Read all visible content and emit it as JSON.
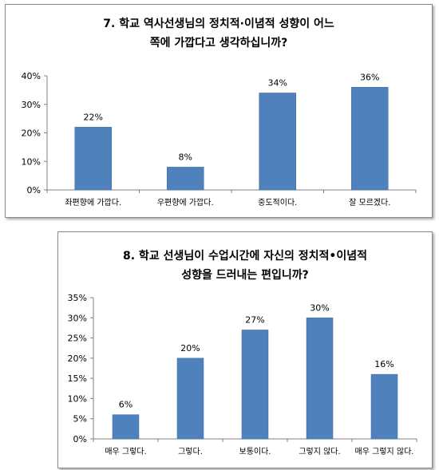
{
  "colors": {
    "bar": "#4f81bd",
    "bar_edge": "#3a6aa6",
    "axis": "#808080"
  },
  "chart_data": [
    {
      "type": "bar",
      "title_lines": [
        "7. 학교 역사선생님의 정치적·이념적 성향이 어느",
        "쪽에 가깝다고 생각하십니까?"
      ],
      "categories": [
        "좌편향에 가깝다.",
        "우편향에 가깝다.",
        "중도적이다.",
        "잘 모르겠다."
      ],
      "values": [
        22,
        8,
        34,
        36
      ],
      "data_labels": [
        "22%",
        "8%",
        "34%",
        "36%"
      ],
      "yticks": [
        "0%",
        "10%",
        "20%",
        "30%",
        "40%"
      ],
      "ylim": [
        0,
        40
      ],
      "grid": false
    },
    {
      "type": "bar",
      "title_lines": [
        "8. 학교 선생님이 수업시간에 자신의 정치적•이념적",
        "성향을 드러내는 편입니까?"
      ],
      "categories": [
        "매우 그렇다.",
        "그렇다.",
        "보통이다.",
        "그렇지 않다.",
        "매우 그렇지 않다."
      ],
      "values": [
        6,
        20,
        27,
        30,
        16
      ],
      "data_labels": [
        "6%",
        "20%",
        "27%",
        "30%",
        "16%"
      ],
      "yticks": [
        "0%",
        "5%",
        "10%",
        "15%",
        "20%",
        "25%",
        "30%",
        "35%"
      ],
      "ylim": [
        0,
        35
      ],
      "grid": false
    }
  ]
}
